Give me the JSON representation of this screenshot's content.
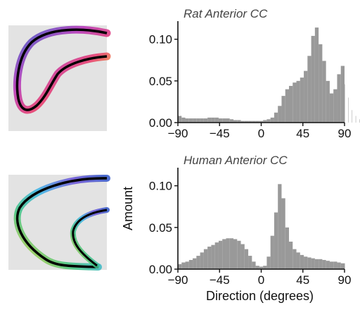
{
  "colors": {
    "bar": "#999999",
    "axis": "#111111",
    "thumb_bg": "#e3e3e3",
    "outline": "#000000"
  },
  "thumbnails": [
    {
      "name": "rat-cc-orientation-thumbnail",
      "icon": "tract-orientation-map"
    },
    {
      "name": "human-cc-orientation-thumbnail",
      "icon": "tract-orientation-map"
    }
  ],
  "chart_data": [
    {
      "type": "bar",
      "title": "Rat Anterior CC",
      "xlabel": "",
      "ylabel": "",
      "xlim": [
        -90,
        90
      ],
      "ylim": [
        0,
        0.12
      ],
      "x_ticks": [
        -90,
        -45,
        0,
        45,
        90
      ],
      "x_tick_labels": [
        "−90",
        "−45",
        "0",
        "45",
        "90"
      ],
      "y_ticks": [
        0.0,
        0.05,
        0.1
      ],
      "y_tick_labels": [
        "0.00",
        "0.05",
        "0.10"
      ],
      "grid": false,
      "bin_width": 4,
      "bin_start": -90,
      "values": [
        0.008,
        0.006,
        0.005,
        0.005,
        0.005,
        0.005,
        0.005,
        0.005,
        0.006,
        0.006,
        0.006,
        0.005,
        0.005,
        0.005,
        0.004,
        0.003,
        0.003,
        0.002,
        0.002,
        0.002,
        0.002,
        0.002,
        0.002,
        0.003,
        0.004,
        0.006,
        0.012,
        0.02,
        0.032,
        0.04,
        0.044,
        0.048,
        0.05,
        0.054,
        0.062,
        0.08,
        0.104,
        0.114,
        0.094,
        0.074,
        0.05,
        0.035,
        0.04,
        0.058,
        0.068,
        0.046,
        0.03,
        0.015,
        0.008,
        0.004
      ]
    },
    {
      "type": "bar",
      "title": "Human Anterior CC",
      "xlabel": "Direction (degrees)",
      "ylabel": "Amount",
      "xlim": [
        -90,
        90
      ],
      "ylim": [
        0,
        0.12
      ],
      "x_ticks": [
        -90,
        -45,
        0,
        45,
        90
      ],
      "x_tick_labels": [
        "−90",
        "−45",
        "0",
        "45",
        "90"
      ],
      "y_ticks": [
        0.0,
        0.05,
        0.1
      ],
      "y_tick_labels": [
        "0.00",
        "0.05",
        "0.10"
      ],
      "grid": false,
      "bin_width": 4,
      "bin_start": -90,
      "values": [
        0.006,
        0.008,
        0.009,
        0.011,
        0.013,
        0.016,
        0.02,
        0.024,
        0.027,
        0.029,
        0.032,
        0.034,
        0.036,
        0.037,
        0.037,
        0.036,
        0.034,
        0.03,
        0.024,
        0.016,
        0.009,
        0.004,
        0.003,
        0.004,
        0.015,
        0.04,
        0.068,
        0.102,
        0.085,
        0.05,
        0.033,
        0.024,
        0.02,
        0.017,
        0.015,
        0.014,
        0.013,
        0.012,
        0.012,
        0.011,
        0.01,
        0.009,
        0.009,
        0.008,
        0.007,
        0.007
      ]
    }
  ]
}
